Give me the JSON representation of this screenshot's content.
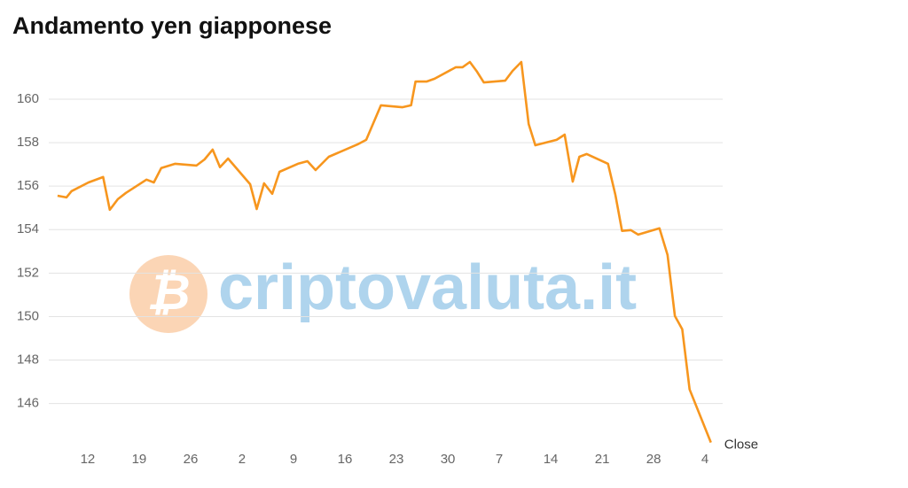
{
  "chart_data": {
    "type": "line",
    "title": "Andamento yen giapponese",
    "watermark": "criptovaluta.it",
    "annotation": "Close",
    "x": [
      -4.1,
      -2.9,
      -2.2,
      0.1,
      2.1,
      3.0,
      4.1,
      5.2,
      8.0,
      9.0,
      10.0,
      11.9,
      14.8,
      15.9,
      17.0,
      18.0,
      19.1,
      22.1,
      23.0,
      24.0,
      25.1,
      26.1,
      28.6,
      29.9,
      31.0,
      32.8,
      36.7,
      37.9,
      39.9,
      42.8,
      44.0,
      44.6,
      46.1,
      47.2,
      50.1,
      51.0,
      52.0,
      52.9,
      53.9,
      56.8,
      57.8,
      59.0,
      60.0,
      60.9,
      63.8,
      64.9,
      66.0,
      66.9,
      67.9,
      70.8,
      71.8,
      72.7,
      73.9,
      74.9,
      77.8,
      78.9,
      79.9,
      80.9,
      81.9,
      84.8
    ],
    "series": [
      {
        "name": "Close",
        "color": "#f7961e",
        "values": [
          155.56,
          155.48,
          155.77,
          156.17,
          156.42,
          154.91,
          155.4,
          155.69,
          156.3,
          156.17,
          156.83,
          157.03,
          156.95,
          157.23,
          157.68,
          156.87,
          157.27,
          156.09,
          154.95,
          156.13,
          155.65,
          156.66,
          157.03,
          157.15,
          156.74,
          157.35,
          157.92,
          158.13,
          159.72,
          159.63,
          159.72,
          160.81,
          160.81,
          160.94,
          161.47,
          161.47,
          161.71,
          161.3,
          160.77,
          160.85,
          161.3,
          161.71,
          158.86,
          157.88,
          158.13,
          158.37,
          156.21,
          157.35,
          157.48,
          157.03,
          155.6,
          153.94,
          153.98,
          153.77,
          154.06,
          152.84,
          150.03,
          149.42,
          146.65,
          144.21
        ]
      }
    ],
    "xlim": [
      -5.3,
      86.4
    ],
    "xticks": [
      {
        "value": 0,
        "label": "12"
      },
      {
        "value": 7,
        "label": "19"
      },
      {
        "value": 14,
        "label": "26"
      },
      {
        "value": 21,
        "label": "2"
      },
      {
        "value": 28,
        "label": "9"
      },
      {
        "value": 35,
        "label": "16"
      },
      {
        "value": 42,
        "label": "23"
      },
      {
        "value": 49,
        "label": "30"
      },
      {
        "value": 56,
        "label": "7"
      },
      {
        "value": 63,
        "label": "14"
      },
      {
        "value": 70,
        "label": "21"
      },
      {
        "value": 77,
        "label": "28"
      },
      {
        "value": 84,
        "label": "4"
      }
    ],
    "ylim": [
      143.5,
      162.2
    ],
    "yticks": [
      146,
      148,
      150,
      152,
      154,
      156,
      158,
      160
    ],
    "grid": true
  }
}
